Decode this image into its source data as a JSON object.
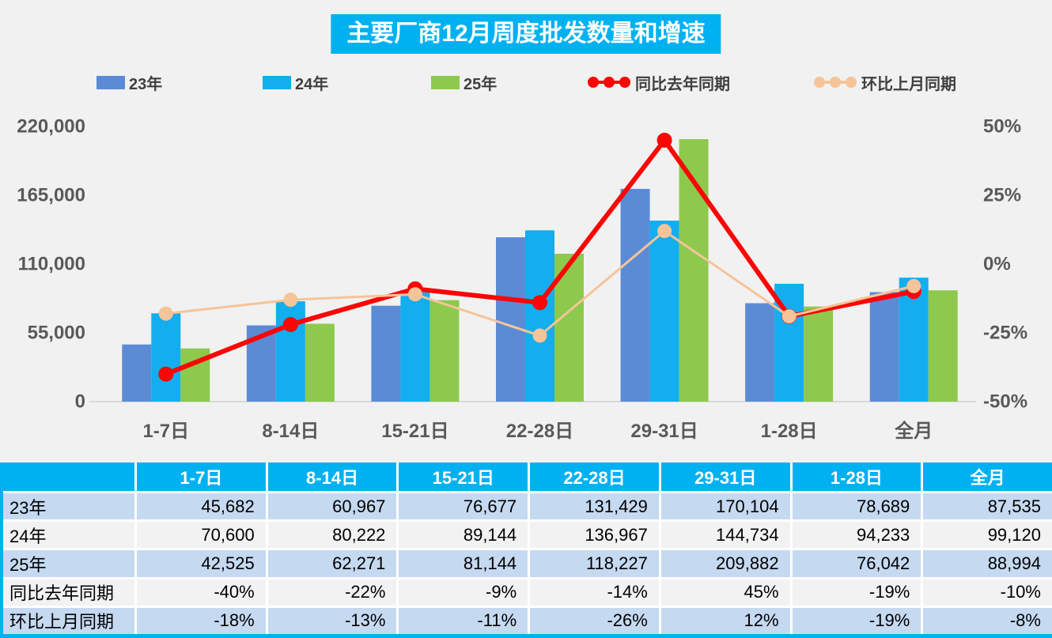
{
  "title": "主要厂商12月周度批发数量和增速",
  "colors": {
    "accent": "#00B1F1",
    "bar_23": "#5B8BD5",
    "bar_24": "#12AEEF",
    "bar_25": "#8DC94D",
    "line_yoy": "#FB0505",
    "line_mom": "#F6C499",
    "axis_text": "#595959",
    "axis_line": "#D9D9D9",
    "row_blue": "#C5D9F1",
    "row_gray": "#F2F2F2",
    "background": "#F1F1F1"
  },
  "legend": [
    {
      "label": "23年",
      "type": "bar",
      "color": "#5B8BD5"
    },
    {
      "label": "24年",
      "type": "bar",
      "color": "#12AEEF"
    },
    {
      "label": "25年",
      "type": "bar",
      "color": "#8DC94D"
    },
    {
      "label": "同比去年同期",
      "type": "line",
      "color": "#FB0505"
    },
    {
      "label": "环比上月同期",
      "type": "line",
      "color": "#F6C499"
    }
  ],
  "chart_data": {
    "type": "combo",
    "title": "主要厂商12月周度批发数量和增速",
    "categories": [
      "1-7日",
      "8-14日",
      "15-21日",
      "22-28日",
      "29-31日",
      "1-28日",
      "全月"
    ],
    "bar_series": [
      {
        "name": "23年",
        "color": "#5B8BD5",
        "values": [
          45682,
          60967,
          76677,
          131429,
          170104,
          78689,
          87535
        ]
      },
      {
        "name": "24年",
        "color": "#12AEEF",
        "values": [
          70600,
          80222,
          89144,
          136967,
          144734,
          94233,
          99120
        ]
      },
      {
        "name": "25年",
        "color": "#8DC94D",
        "values": [
          42525,
          62271,
          81144,
          118227,
          209882,
          76042,
          88994
        ]
      }
    ],
    "line_series": [
      {
        "name": "同比去年同期",
        "color": "#FB0505",
        "stroke_width": 6,
        "marker_r": 9.5,
        "values": [
          -40,
          -22,
          -9,
          -14,
          45,
          -19,
          -10
        ]
      },
      {
        "name": "环比上月同期",
        "color": "#F6C499",
        "stroke_width": 3,
        "marker_r": 9,
        "values": [
          -18,
          -13,
          -11,
          -26,
          12,
          -19,
          -8
        ]
      }
    ],
    "left_axis": {
      "min": 0,
      "max": 220000,
      "ticks": [
        0,
        55000,
        110000,
        165000,
        220000
      ],
      "labels": [
        "0",
        "55,000",
        "110,000",
        "165,000",
        "220,000"
      ]
    },
    "right_axis": {
      "min": -50,
      "max": 50,
      "ticks": [
        -50,
        -25,
        0,
        25,
        50
      ],
      "labels": [
        "-50%",
        "-25%",
        "0%",
        "25%",
        "50%"
      ]
    },
    "grid": false,
    "legend_position": "top"
  },
  "table": {
    "header": [
      "",
      "1-7日",
      "8-14日",
      "15-21日",
      "22-28日",
      "29-31日",
      "1-28日",
      "全月"
    ],
    "rows": [
      {
        "label": "23年",
        "shade": "blue",
        "values": [
          "45,682",
          "60,967",
          "76,677",
          "131,429",
          "170,104",
          "78,689",
          "87,535"
        ]
      },
      {
        "label": "24年",
        "shade": "gray",
        "values": [
          "70,600",
          "80,222",
          "89,144",
          "136,967",
          "144,734",
          "94,233",
          "99,120"
        ]
      },
      {
        "label": "25年",
        "shade": "blue",
        "values": [
          "42,525",
          "62,271",
          "81,144",
          "118,227",
          "209,882",
          "76,042",
          "88,994"
        ]
      },
      {
        "label": "同比去年同期",
        "shade": "gray",
        "values": [
          "-40%",
          "-22%",
          "-9%",
          "-14%",
          "45%",
          "-19%",
          "-10%"
        ]
      },
      {
        "label": "环比上月同期",
        "shade": "blue",
        "values": [
          "-18%",
          "-13%",
          "-11%",
          "-26%",
          "12%",
          "-19%",
          "-8%"
        ]
      }
    ]
  }
}
